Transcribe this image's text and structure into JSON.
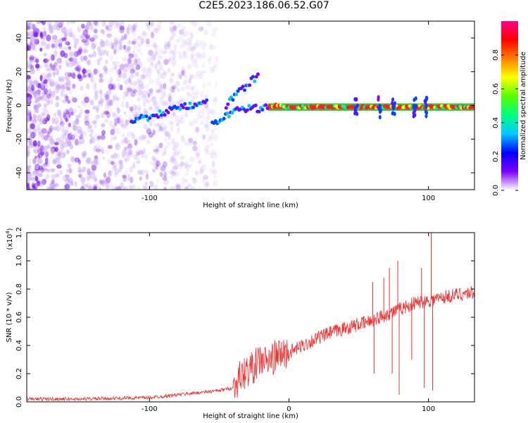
{
  "title": "C2E5.2023.186.06.52.G07",
  "colorbar": {
    "label": "Normalized spectral amplitude",
    "ticks": [
      "0.0",
      "0.2",
      "0.4",
      "0.6",
      "0.8"
    ],
    "colors": [
      "#ffffff",
      "#7b00ff",
      "#0000ff",
      "#00c8ff",
      "#00ff80",
      "#55ff00",
      "#ffff00",
      "#ff8000",
      "#ff0000",
      "#ff0088"
    ]
  },
  "chart_data": [
    {
      "type": "heatmap",
      "xlabel": "Height of straight line (km)",
      "ylabel": "Frequency (Hz)",
      "xlim": [
        -188,
        133
      ],
      "ylim": [
        -50,
        50
      ],
      "xticks": [
        -100,
        0,
        100
      ],
      "xtick_labels": [
        "-100",
        "",
        "100"
      ],
      "yticks": [
        -40,
        -20,
        0,
        20,
        40
      ],
      "ytick_labels": [
        "-40",
        "-20",
        "0",
        "20",
        "40"
      ],
      "grid": false,
      "noise_region_x": [
        -188,
        -52
      ],
      "ridges": [
        {
          "name": "",
          "points": [
            [
              -113,
              -9
            ],
            [
              -100,
              -7
            ],
            [
              -85,
              -3
            ],
            [
              -70,
              0
            ],
            [
              -58,
              4
            ]
          ]
        },
        {
          "name": "",
          "points": [
            [
              -55,
              -12
            ],
            [
              -48,
              -8
            ],
            [
              -40,
              -4
            ],
            [
              -30,
              -2
            ],
            [
              -20,
              -2
            ],
            [
              -10,
              0
            ],
            [
              0,
              -1
            ],
            [
              20,
              -1
            ],
            [
              40,
              -1
            ],
            [
              60,
              -1
            ],
            [
              80,
              -1
            ],
            [
              100,
              -1
            ],
            [
              133,
              -1
            ]
          ]
        },
        {
          "name": "",
          "points": [
            [
              -45,
              0
            ],
            [
              -38,
              6
            ],
            [
              -30,
              12
            ],
            [
              -22,
              18
            ]
          ]
        }
      ]
    },
    {
      "type": "line",
      "xlabel": "Height of straight line (km)",
      "ylabel": "SNR (10 * v/v)",
      "y_multiplier": "(x10",
      "y_multiplier_exp": "4",
      "y_multiplier_close": ")",
      "xlim": [
        -188,
        133
      ],
      "ylim": [
        0,
        1.2
      ],
      "xticks": [
        -100,
        0,
        100
      ],
      "xtick_labels": [
        "-100",
        "0",
        "100"
      ],
      "yticks": [
        0.0,
        0.2,
        0.4,
        0.6,
        0.8,
        1.0,
        1.2
      ],
      "ytick_labels": [
        "0.0",
        "0.2",
        "0.4",
        "0.6",
        "0.8",
        "1.0",
        "1.2"
      ],
      "grid": false,
      "series": [
        {
          "name": "",
          "color": "#f03030",
          "x": [
            -188,
            -150,
            -100,
            -80,
            -60,
            -50,
            -40,
            -35,
            -30,
            -25,
            -20,
            -15,
            -10,
            -5,
            0,
            10,
            20,
            30,
            40,
            50,
            55,
            60,
            65,
            70,
            75,
            80,
            85,
            90,
            95,
            100,
            105,
            110,
            120,
            133
          ],
          "y": [
            0.02,
            0.02,
            0.03,
            0.05,
            0.07,
            0.08,
            0.1,
            0.18,
            0.22,
            0.25,
            0.3,
            0.28,
            0.32,
            0.34,
            0.35,
            0.4,
            0.45,
            0.49,
            0.52,
            0.55,
            0.56,
            0.58,
            0.6,
            0.62,
            0.64,
            0.66,
            0.68,
            0.7,
            0.71,
            0.72,
            0.73,
            0.74,
            0.76,
            0.78
          ]
        }
      ],
      "spikes": [
        [
          60,
          0.85
        ],
        [
          61,
          0.2
        ],
        [
          68,
          0.88
        ],
        [
          72,
          0.95
        ],
        [
          74,
          0.2
        ],
        [
          78,
          1.0
        ],
        [
          79,
          0.05
        ],
        [
          88,
          0.3
        ],
        [
          95,
          0.95
        ],
        [
          97,
          0.1
        ],
        [
          102,
          1.2
        ],
        [
          103,
          0.08
        ]
      ]
    }
  ]
}
